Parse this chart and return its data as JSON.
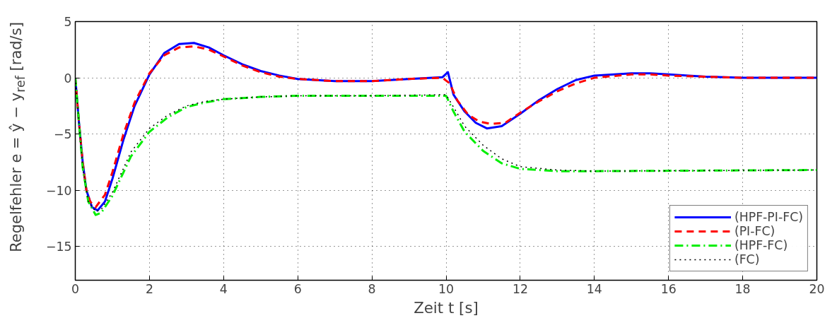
{
  "chart_data": {
    "type": "line",
    "xlabel": "Zeit t [s]",
    "ylabel": "Regelfehler e = ŷ − y$_{ref}$ [rad/s]",
    "xlim": [
      0,
      20
    ],
    "ylim": [
      -18,
      5
    ],
    "xticks": [
      0,
      2,
      4,
      6,
      8,
      10,
      12,
      14,
      16,
      18,
      20
    ],
    "yticks": [
      {
        "value": -15,
        "label": "−15"
      },
      {
        "value": -10,
        "label": "−10"
      },
      {
        "value": -5,
        "label": "−5"
      },
      0,
      5
    ],
    "grid": true,
    "legend": "bottom right",
    "marker": "none",
    "series": [
      {
        "name": "(HPF-PI-FC)",
        "color": "#0000ff",
        "line_style": "solid",
        "x": [
          0,
          0.1,
          0.2,
          0.3,
          0.45,
          0.6,
          0.8,
          1.0,
          1.3,
          1.6,
          2.0,
          2.4,
          2.8,
          3.2,
          3.6,
          4.0,
          4.5,
          5,
          5.5,
          6,
          7,
          8,
          9,
          9.9,
          10.05,
          10.2,
          10.5,
          10.8,
          11.1,
          11.5,
          12,
          12.5,
          13,
          13.5,
          14,
          15,
          15.5,
          16,
          17,
          18,
          20
        ],
        "values": [
          0,
          -4,
          -7.5,
          -10,
          -11.5,
          -11.8,
          -11,
          -9,
          -5.5,
          -2.5,
          0.3,
          2.2,
          3.0,
          3.1,
          2.7,
          2.0,
          1.2,
          0.6,
          0.2,
          -0.1,
          -0.3,
          -0.3,
          -0.1,
          0.05,
          0.5,
          -1.5,
          -3,
          -4,
          -4.5,
          -4.3,
          -3.2,
          -2,
          -1,
          -0.2,
          0.2,
          0.4,
          0.4,
          0.3,
          0.1,
          0,
          0
        ]
      },
      {
        "name": "(PI-FC)",
        "color": "#ff0000",
        "line_style": "dashed",
        "x": [
          0,
          0.1,
          0.2,
          0.3,
          0.4,
          0.55,
          0.8,
          1.0,
          1.3,
          1.6,
          2.0,
          2.4,
          2.8,
          3.2,
          3.6,
          4.0,
          4.5,
          5,
          5.5,
          6,
          7,
          8,
          9,
          9.9,
          10.1,
          10.3,
          10.6,
          10.9,
          11.2,
          11.6,
          12,
          12.5,
          13,
          13.5,
          14,
          15,
          15.5,
          16,
          17,
          18,
          20
        ],
        "values": [
          0,
          -4,
          -7.5,
          -10,
          -11,
          -11.5,
          -10.4,
          -8.4,
          -5,
          -2.2,
          0.4,
          2.0,
          2.7,
          2.8,
          2.5,
          1.9,
          1.1,
          0.5,
          0.1,
          -0.1,
          -0.3,
          -0.3,
          -0.1,
          0,
          -0.5,
          -2,
          -3.3,
          -3.9,
          -4.1,
          -4.0,
          -3.1,
          -2.1,
          -1.2,
          -0.5,
          0,
          0.3,
          0.3,
          0.2,
          0.1,
          0,
          0
        ]
      },
      {
        "name": "(HPF-FC)",
        "color": "#00ee00",
        "line_style": "dashdot",
        "x": [
          0,
          0.1,
          0.2,
          0.35,
          0.55,
          0.7,
          1.0,
          1.5,
          2,
          2.5,
          3,
          3.5,
          4,
          5,
          6,
          8,
          10,
          10.2,
          10.5,
          11,
          11.5,
          12,
          13,
          14,
          20
        ],
        "values": [
          0,
          -4,
          -8,
          -11,
          -12.2,
          -12,
          -10.5,
          -7,
          -4.8,
          -3.5,
          -2.6,
          -2.2,
          -1.9,
          -1.7,
          -1.6,
          -1.6,
          -1.6,
          -3,
          -4.8,
          -6.5,
          -7.6,
          -8.1,
          -8.3,
          -8.3,
          -8.2
        ]
      },
      {
        "name": "(FC)",
        "color": "#000000",
        "line_style": "dotted",
        "x": [
          0,
          0.1,
          0.2,
          0.35,
          0.55,
          0.7,
          1.0,
          1.5,
          2,
          2.5,
          3,
          3.5,
          4,
          5,
          6,
          8,
          10,
          10.2,
          10.5,
          11,
          11.5,
          12,
          13,
          14,
          20
        ],
        "values": [
          0,
          -4,
          -8,
          -11,
          -11.9,
          -11.7,
          -10.2,
          -6.6,
          -4.5,
          -3.3,
          -2.5,
          -2.1,
          -1.9,
          -1.7,
          -1.6,
          -1.6,
          -1.5,
          -2.6,
          -4.3,
          -6,
          -7.2,
          -7.9,
          -8.2,
          -8.3,
          -8.2
        ]
      }
    ]
  }
}
